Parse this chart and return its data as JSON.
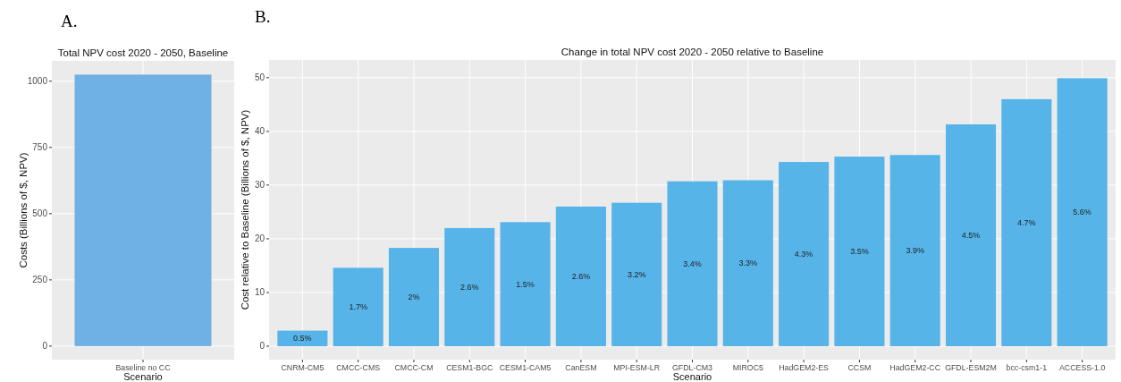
{
  "chart_data": [
    {
      "type": "bar",
      "title": "Total NPV cost 2020 - 2050, Baseline",
      "xlabel": "Scenario",
      "ylabel": "Costs (Billions of $, NPV)",
      "annotations": [
        "A."
      ],
      "categories": [
        "Baseline no CC"
      ],
      "values": [
        1025
      ],
      "color": "#6fb1e4",
      "ylim": [
        -51,
        1077
      ],
      "yticks": [
        0,
        250,
        500,
        750,
        1000
      ],
      "grid": true
    },
    {
      "type": "bar",
      "title": "Change in total NPV cost 2020 - 2050 relative to Baseline",
      "xlabel": "Scenario",
      "ylabel": "Cost relative to Baseline (Billions of $, NPV)",
      "categories": [
        "CNRM-CM5",
        "CMCC-CMS",
        "CMCC-CM",
        "CESM1-BGC",
        "CESM1-CAM5",
        "CanESM",
        "MPI-ESM-LR",
        "GFDL-CM3",
        "MIROC5",
        "HadGEM2-ES",
        "CCSM",
        "HadGEM2-CC",
        "GFDL-ESM2M",
        "bcc-csm1-1",
        "ACCESS-1.0"
      ],
      "values": [
        2.9,
        14.6,
        18.3,
        22.0,
        23.1,
        26.0,
        26.7,
        30.7,
        30.9,
        34.3,
        35.3,
        35.6,
        41.3,
        46.0,
        49.9
      ],
      "annotations": [
        "B.",
        "0.5%",
        "1.7%",
        "2%",
        "2.6%",
        "1.5%",
        "2.6%",
        "3.2%",
        "3.4%",
        "3.3%",
        "4.3%",
        "3.5%",
        "3.9%",
        "4.5%",
        "4.7%",
        "5.6%"
      ],
      "color": "#56b4e9",
      "ylim": [
        -2.5,
        53.3
      ],
      "yticks": [
        0,
        10,
        20,
        30,
        40,
        50
      ],
      "grid": true
    }
  ]
}
